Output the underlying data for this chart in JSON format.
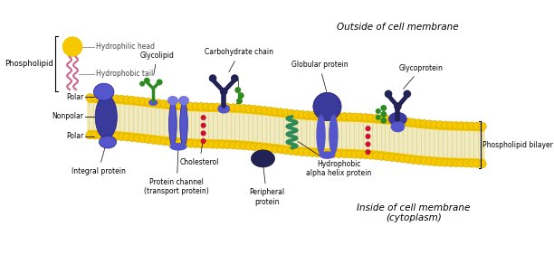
{
  "background_color": "#ffffff",
  "title_outside": "Outside of cell membrane",
  "title_inside": "Inside of cell membrane\n(cytoplasm)",
  "title_phospholipid_bilayer": "Phospholipid bilayer",
  "legend_phospholipid": "Phospholipid",
  "legend_hydrophilic_head": "Hydrophilic head",
  "legend_hydrophobic_tail": "Hydrophobic tail",
  "label_polar_top": "Polar",
  "label_nonpolar": "Nonpolar",
  "label_polar_bottom": "Polar",
  "label_integral": "Integral protein",
  "label_glycolipid": "Glycolipid",
  "label_carbohydrate": "Carbohydrate chain",
  "label_globular": "Globular protein",
  "label_glycoprotein": "Glycoprotein",
  "label_protein_channel": "Protein channel\n(transport protein)",
  "label_cholesterol": "Cholesterol",
  "label_peripheral": "Peripheral\nprotein",
  "label_hydrophobic": "Hydrophobic\nalpha helix protein",
  "membrane_gold": "#F5C800",
  "membrane_light": "#F5C800",
  "tail_cream": "#F0EAC0",
  "protein_dark": "#3A3A9A",
  "protein_mid": "#5555CC",
  "protein_light": "#7777DD",
  "glycan_green": "#2E8B22",
  "cholesterol_red": "#CC1133",
  "helix_green": "#2E8B57",
  "legend_head_gold": "#F5C800",
  "legend_tail_pink": "#CC6688",
  "figsize": [
    6.12,
    2.92
  ],
  "dpi": 100
}
